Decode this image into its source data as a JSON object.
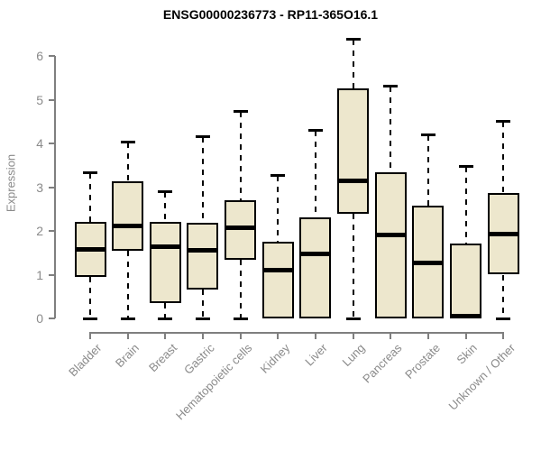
{
  "chart_data": {
    "type": "boxplot",
    "title": "ENSG00000236773 - RP11-365O16.1",
    "xlabel": "",
    "ylabel": "Expression",
    "ylim": [
      0,
      6.4
    ],
    "yticks": [
      0,
      1,
      2,
      3,
      4,
      5,
      6
    ],
    "grid": false,
    "legend": "none",
    "box_fill_color": "#EDE7CD",
    "box_border_color": "#000000",
    "axis_color": "#7f7f7f",
    "axis_text_color": "#8a8a8a",
    "categories": [
      "Bladder",
      "Brain",
      "Breast",
      "Gastric",
      "Hematopoietic cells",
      "Kidney",
      "Liver",
      "Lung",
      "Pancreas",
      "Prostate",
      "Skin",
      "Unknown / Other"
    ],
    "series": [
      {
        "category": "Bladder",
        "min": 0,
        "q1": 0.95,
        "median": 1.58,
        "q3": 2.2,
        "max": 3.35
      },
      {
        "category": "Brain",
        "min": 0,
        "q1": 1.54,
        "median": 2.12,
        "q3": 3.14,
        "max": 4.05
      },
      {
        "category": "Breast",
        "min": 0,
        "q1": 0.35,
        "median": 1.63,
        "q3": 2.2,
        "max": 2.9
      },
      {
        "category": "Gastric",
        "min": 0,
        "q1": 0.65,
        "median": 1.56,
        "q3": 2.19,
        "max": 4.17
      },
      {
        "category": "Hematopoietic cells",
        "min": 0,
        "q1": 1.33,
        "median": 2.07,
        "q3": 2.7,
        "max": 4.75
      },
      {
        "category": "Kidney",
        "min": 0,
        "q1": 0.0,
        "median": 1.11,
        "q3": 1.75,
        "max": 3.28
      },
      {
        "category": "Liver",
        "min": 0,
        "q1": 0.0,
        "median": 1.47,
        "q3": 2.3,
        "max": 4.3
      },
      {
        "category": "Lung",
        "min": 0,
        "q1": 2.4,
        "median": 3.15,
        "q3": 5.26,
        "max": 6.4
      },
      {
        "category": "Pancreas",
        "min": 0,
        "q1": 0.0,
        "median": 1.9,
        "q3": 3.34,
        "max": 5.32
      },
      {
        "category": "Prostate",
        "min": 0,
        "q1": 0.0,
        "median": 1.26,
        "q3": 2.57,
        "max": 4.2
      },
      {
        "category": "Skin",
        "min": 0,
        "q1": 0.0,
        "median": 0.05,
        "q3": 1.71,
        "max": 3.48
      },
      {
        "category": "Unknown / Other",
        "min": 0,
        "q1": 1.0,
        "median": 1.92,
        "q3": 2.86,
        "max": 4.52
      }
    ]
  }
}
